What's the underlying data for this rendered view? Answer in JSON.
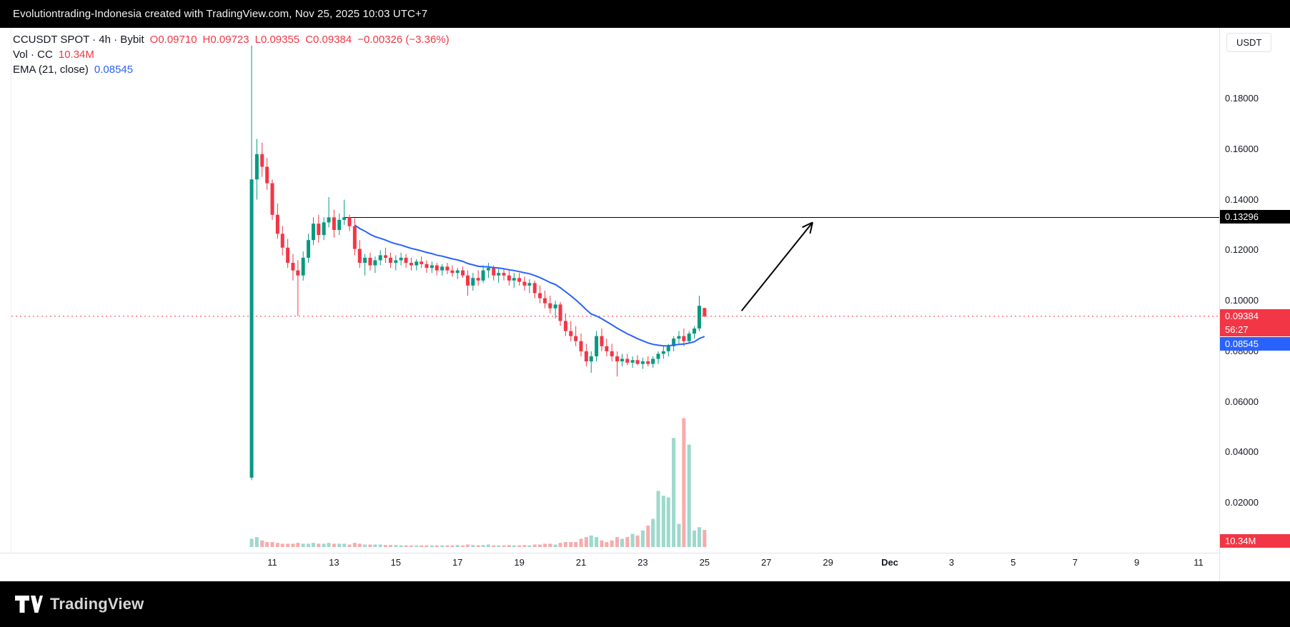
{
  "header": {
    "text": "Evolutiontrading-Indonesia created with TradingView.com, Nov 25, 2025 10:03 UTC+7"
  },
  "legend": {
    "symbol": "CCUSDT SPOT · 4h · Bybit",
    "open": "O0.09710",
    "high": "H0.09723",
    "low": "L0.09355",
    "close": "C0.09384",
    "change": "−0.00326 (−3.36%)",
    "vol_label": "Vol · CC",
    "vol_value": "10.34M",
    "ema_label": "EMA (21, close)",
    "ema_value": "0.08545"
  },
  "price_scale": {
    "currency_button": "USDT",
    "labels": {
      "level": {
        "text": "0.13296",
        "price": 0.13296
      },
      "last_price": {
        "text": "0.09384",
        "price": 0.09384,
        "countdown": "56:27"
      },
      "ema": {
        "text": "0.08545",
        "price": 0.08545
      },
      "volume": {
        "text": "10.34M"
      }
    }
  },
  "footer": {
    "brand": "TradingView"
  },
  "colors": {
    "up": "#089981",
    "down": "#f23645",
    "vol_up": "#9cd9cc",
    "vol_down": "#f8abab",
    "ema": "#2962ff",
    "level_line": "#000000",
    "arrow": "#000000",
    "axis_text": "#131722"
  },
  "chart_data": {
    "type": "candlestick",
    "symbol": "CCUSDT SPOT",
    "exchange": "Bybit",
    "interval": "4h",
    "x_unit": "day of November 2025 (fractional steps = 4h bars; 31 = Dec 1)",
    "columns": [
      "day",
      "open",
      "high",
      "low",
      "close",
      "volume_m"
    ],
    "candles": [
      [
        10.33,
        0.03,
        0.201,
        0.029,
        0.148,
        5
      ],
      [
        10.5,
        0.148,
        0.164,
        0.14,
        0.158,
        6
      ],
      [
        10.67,
        0.158,
        0.1625,
        0.149,
        0.153,
        4
      ],
      [
        10.83,
        0.153,
        0.1565,
        0.144,
        0.1465,
        3
      ],
      [
        11.0,
        0.1465,
        0.148,
        0.132,
        0.134,
        3
      ],
      [
        11.17,
        0.134,
        0.1385,
        0.1245,
        0.1265,
        2.5
      ],
      [
        11.33,
        0.1265,
        0.1295,
        0.118,
        0.121,
        2
      ],
      [
        11.5,
        0.121,
        0.1245,
        0.113,
        0.115,
        2
      ],
      [
        11.67,
        0.115,
        0.1185,
        0.108,
        0.112,
        2
      ],
      [
        11.83,
        0.112,
        0.116,
        0.094,
        0.11,
        2.5
      ],
      [
        12.0,
        0.11,
        0.1195,
        0.108,
        0.117,
        2
      ],
      [
        12.17,
        0.117,
        0.1265,
        0.115,
        0.124,
        2
      ],
      [
        12.33,
        0.124,
        0.133,
        0.122,
        0.1305,
        2.5
      ],
      [
        12.5,
        0.1305,
        0.134,
        0.123,
        0.126,
        2
      ],
      [
        12.67,
        0.126,
        0.133,
        0.124,
        0.131,
        2
      ],
      [
        12.83,
        0.131,
        0.141,
        0.129,
        0.133,
        2.5
      ],
      [
        13.0,
        0.133,
        0.136,
        0.125,
        0.128,
        2
      ],
      [
        13.17,
        0.128,
        0.1345,
        0.126,
        0.132,
        2
      ],
      [
        13.33,
        0.132,
        0.14,
        0.13,
        0.133,
        2
      ],
      [
        13.5,
        0.133,
        0.134,
        0.1275,
        0.1295,
        1.5
      ],
      [
        13.67,
        0.1295,
        0.133,
        0.118,
        0.1205,
        2.5
      ],
      [
        13.83,
        0.1205,
        0.124,
        0.113,
        0.115,
        2
      ],
      [
        14.0,
        0.115,
        0.1185,
        0.11,
        0.117,
        1.5
      ],
      [
        14.17,
        0.117,
        0.119,
        0.112,
        0.114,
        1.5
      ],
      [
        14.33,
        0.114,
        0.1175,
        0.111,
        0.116,
        1.5
      ],
      [
        14.5,
        0.116,
        0.12,
        0.114,
        0.118,
        1.5
      ],
      [
        14.67,
        0.118,
        0.121,
        0.115,
        0.117,
        1.2
      ],
      [
        14.83,
        0.117,
        0.119,
        0.113,
        0.115,
        1.2
      ],
      [
        15.0,
        0.115,
        0.118,
        0.112,
        0.116,
        1.2
      ],
      [
        15.17,
        0.116,
        0.119,
        0.114,
        0.117,
        1
      ],
      [
        15.33,
        0.117,
        0.1185,
        0.113,
        0.115,
        1
      ],
      [
        15.5,
        0.115,
        0.117,
        0.112,
        0.114,
        1
      ],
      [
        15.67,
        0.114,
        0.1165,
        0.112,
        0.1155,
        1
      ],
      [
        15.83,
        0.1155,
        0.1175,
        0.113,
        0.1145,
        1
      ],
      [
        16.0,
        0.1145,
        0.116,
        0.111,
        0.113,
        1
      ],
      [
        16.17,
        0.113,
        0.1155,
        0.111,
        0.114,
        1
      ],
      [
        16.33,
        0.114,
        0.115,
        0.11,
        0.112,
        1
      ],
      [
        16.5,
        0.112,
        0.1145,
        0.11,
        0.1135,
        1
      ],
      [
        16.67,
        0.1135,
        0.115,
        0.1105,
        0.112,
        1
      ],
      [
        16.83,
        0.112,
        0.114,
        0.1095,
        0.111,
        1
      ],
      [
        17.0,
        0.111,
        0.113,
        0.1085,
        0.112,
        1.2
      ],
      [
        17.17,
        0.112,
        0.1135,
        0.109,
        0.11,
        1
      ],
      [
        17.33,
        0.11,
        0.112,
        0.102,
        0.106,
        1.5
      ],
      [
        17.5,
        0.106,
        0.111,
        0.104,
        0.109,
        1.2
      ],
      [
        17.67,
        0.109,
        0.112,
        0.106,
        0.108,
        1
      ],
      [
        17.83,
        0.108,
        0.114,
        0.107,
        0.112,
        1.2
      ],
      [
        18.0,
        0.112,
        0.115,
        0.109,
        0.113,
        1.5
      ],
      [
        18.17,
        0.113,
        0.114,
        0.108,
        0.11,
        1
      ],
      [
        18.33,
        0.11,
        0.113,
        0.107,
        0.111,
        1
      ],
      [
        18.5,
        0.111,
        0.1125,
        0.108,
        0.11,
        1
      ],
      [
        18.67,
        0.11,
        0.112,
        0.106,
        0.108,
        1.2
      ],
      [
        18.83,
        0.108,
        0.111,
        0.105,
        0.109,
        1
      ],
      [
        19.0,
        0.109,
        0.111,
        0.106,
        0.1075,
        1
      ],
      [
        19.17,
        0.1075,
        0.1095,
        0.104,
        0.106,
        1.2
      ],
      [
        19.33,
        0.106,
        0.1085,
        0.103,
        0.107,
        1
      ],
      [
        19.5,
        0.107,
        0.108,
        0.101,
        0.103,
        1.5
      ],
      [
        19.67,
        0.103,
        0.106,
        0.099,
        0.101,
        1.5
      ],
      [
        19.83,
        0.101,
        0.104,
        0.097,
        0.099,
        2
      ],
      [
        20.0,
        0.099,
        0.102,
        0.095,
        0.097,
        2
      ],
      [
        20.17,
        0.097,
        0.1,
        0.093,
        0.0985,
        1.5
      ],
      [
        20.33,
        0.0985,
        0.0995,
        0.09,
        0.092,
        2.5
      ],
      [
        20.5,
        0.092,
        0.095,
        0.086,
        0.088,
        3
      ],
      [
        20.67,
        0.088,
        0.092,
        0.084,
        0.086,
        3
      ],
      [
        20.83,
        0.086,
        0.09,
        0.082,
        0.084,
        3
      ],
      [
        21.0,
        0.084,
        0.087,
        0.078,
        0.08,
        5
      ],
      [
        21.17,
        0.08,
        0.083,
        0.074,
        0.076,
        6
      ],
      [
        21.33,
        0.076,
        0.08,
        0.0715,
        0.078,
        7
      ],
      [
        21.5,
        0.078,
        0.088,
        0.076,
        0.086,
        6
      ],
      [
        21.67,
        0.086,
        0.089,
        0.08,
        0.082,
        4
      ],
      [
        21.83,
        0.082,
        0.085,
        0.078,
        0.08,
        3
      ],
      [
        22.0,
        0.08,
        0.083,
        0.076,
        0.078,
        4
      ],
      [
        22.17,
        0.078,
        0.08,
        0.07,
        0.076,
        6
      ],
      [
        22.33,
        0.076,
        0.079,
        0.074,
        0.077,
        5
      ],
      [
        22.5,
        0.077,
        0.079,
        0.0745,
        0.0755,
        6
      ],
      [
        22.67,
        0.0755,
        0.078,
        0.0735,
        0.0765,
        8
      ],
      [
        22.83,
        0.0765,
        0.0785,
        0.0745,
        0.075,
        7
      ],
      [
        23.0,
        0.075,
        0.0775,
        0.073,
        0.076,
        10
      ],
      [
        23.17,
        0.076,
        0.078,
        0.074,
        0.075,
        13
      ],
      [
        23.33,
        0.075,
        0.078,
        0.0735,
        0.077,
        17
      ],
      [
        23.5,
        0.077,
        0.08,
        0.075,
        0.079,
        34
      ],
      [
        23.67,
        0.079,
        0.082,
        0.077,
        0.08,
        31
      ],
      [
        23.83,
        0.08,
        0.083,
        0.078,
        0.082,
        30
      ],
      [
        24.0,
        0.082,
        0.086,
        0.08,
        0.085,
        66
      ],
      [
        24.17,
        0.085,
        0.088,
        0.083,
        0.086,
        14
      ],
      [
        24.33,
        0.086,
        0.089,
        0.082,
        0.084,
        78
      ],
      [
        24.5,
        0.084,
        0.088,
        0.083,
        0.087,
        62
      ],
      [
        24.67,
        0.087,
        0.09,
        0.085,
        0.089,
        10
      ],
      [
        24.83,
        0.089,
        0.102,
        0.088,
        0.098,
        12
      ],
      [
        25.0,
        0.0971,
        0.09723,
        0.09355,
        0.09384,
        10.34
      ]
    ],
    "ema_period": 21,
    "ema_last_value": 0.08545,
    "overlays": {
      "level_line": {
        "price": 0.13296,
        "from_day": 13.33
      },
      "last_price_line": {
        "price": 0.09384
      },
      "arrow": {
        "from": {
          "day": 26.2,
          "price": 0.096
        },
        "to": {
          "day": 28.5,
          "price": 0.131
        }
      }
    },
    "y_ticks": [
      {
        "label": "0.18000",
        "value": 0.18
      },
      {
        "label": "0.16000",
        "value": 0.16
      },
      {
        "label": "0.14000",
        "value": 0.14
      },
      {
        "label": "0.12000",
        "value": 0.12
      },
      {
        "label": "0.10000",
        "value": 0.1
      },
      {
        "label": "0.08000",
        "value": 0.08
      },
      {
        "label": "0.06000",
        "value": 0.06
      },
      {
        "label": "0.04000",
        "value": 0.04
      },
      {
        "label": "0.02000",
        "value": 0.02
      }
    ],
    "x_ticks": [
      {
        "label": "11",
        "day": 11
      },
      {
        "label": "13",
        "day": 13
      },
      {
        "label": "15",
        "day": 15
      },
      {
        "label": "17",
        "day": 17
      },
      {
        "label": "19",
        "day": 19
      },
      {
        "label": "21",
        "day": 21
      },
      {
        "label": "23",
        "day": 23
      },
      {
        "label": "25",
        "day": 25
      },
      {
        "label": "27",
        "day": 27
      },
      {
        "label": "29",
        "day": 29
      },
      {
        "label": "Dec",
        "day": 31,
        "month": true
      },
      {
        "label": "3",
        "day": 33
      },
      {
        "label": "5",
        "day": 35
      },
      {
        "label": "7",
        "day": 37
      },
      {
        "label": "9",
        "day": 39
      },
      {
        "label": "11",
        "day": 41
      }
    ],
    "y_range_visible": [
      0,
      0.208
    ]
  }
}
